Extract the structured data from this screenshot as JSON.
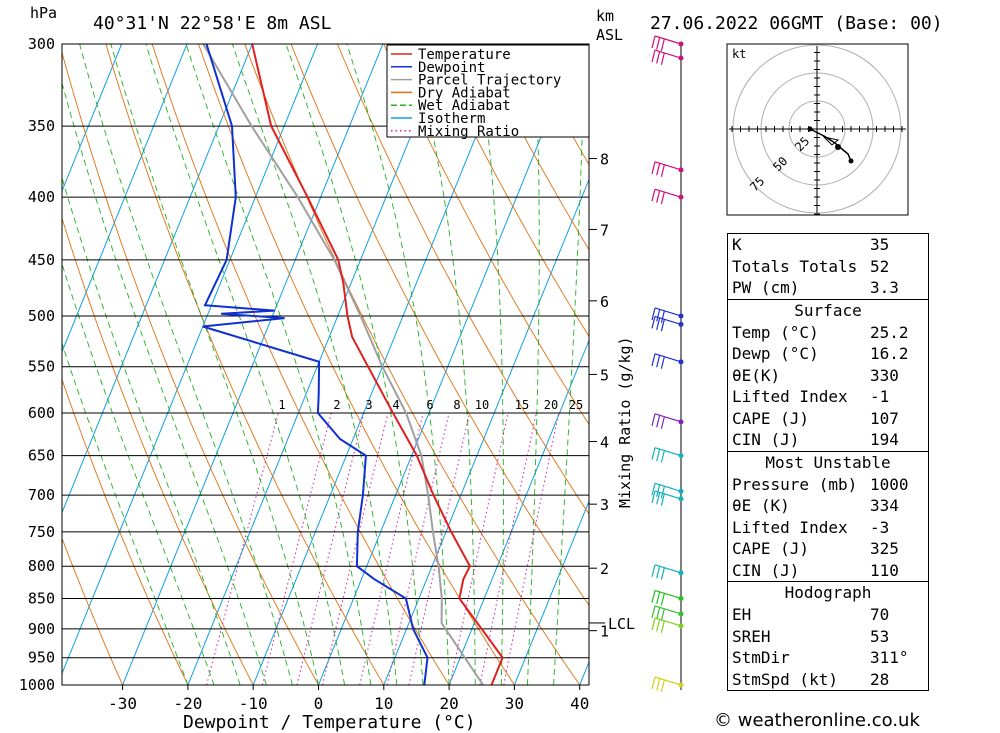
{
  "header": {
    "location": "40°31'N 22°58'E 8m ASL",
    "datetime": "27.06.2022 06GMT (Base: 00)",
    "pressure_unit": "hPa",
    "height_unit_top": "km",
    "height_unit_bottom": "ASL"
  },
  "legend": [
    {
      "label": "Temperature",
      "color": "#e02020",
      "style": "solid"
    },
    {
      "label": "Dewpoint",
      "color": "#1030d0",
      "style": "solid"
    },
    {
      "label": "Parcel Trajectory",
      "color": "#a0a0a0",
      "style": "solid"
    },
    {
      "label": "Dry Adiabat",
      "color": "#e07010",
      "style": "solid"
    },
    {
      "label": "Wet Adiabat",
      "color": "#20b020",
      "style": "dashed"
    },
    {
      "label": "Isotherm",
      "color": "#10a0e0",
      "style": "solid"
    },
    {
      "label": "Mixing Ratio",
      "color": "#d020a0",
      "style": "dotted"
    }
  ],
  "chart_data": {
    "type": "skew-t",
    "xlabel": "Dewpoint / Temperature (°C)",
    "ylabel_right": "Mixing Ratio (g/kg)",
    "pressure_levels": [
      300,
      350,
      400,
      450,
      500,
      550,
      600,
      650,
      700,
      750,
      800,
      850,
      900,
      950,
      1000
    ],
    "x_ticks": [
      -30,
      -20,
      -10,
      0,
      10,
      20,
      30,
      40
    ],
    "km_ticks": [
      {
        "label": "8",
        "p": 372
      },
      {
        "label": "7",
        "p": 425
      },
      {
        "label": "6",
        "p": 486
      },
      {
        "label": "5",
        "p": 558
      },
      {
        "label": "4",
        "p": 633
      },
      {
        "label": "3",
        "p": 712
      },
      {
        "label": "2",
        "p": 803
      },
      {
        "label": "1",
        "p": 903
      }
    ],
    "lcl": {
      "label": "LCL",
      "p": 890
    },
    "mixing_ratio_labels": [
      "1",
      "2",
      "3",
      "4",
      "6",
      "8",
      "10",
      "15",
      "20",
      "25"
    ],
    "temperature": [
      {
        "p": 1000,
        "t": 26.5
      },
      {
        "p": 950,
        "t": 26.5
      },
      {
        "p": 900,
        "t": 21.5
      },
      {
        "p": 850,
        "t": 16.2
      },
      {
        "p": 820,
        "t": 15.6
      },
      {
        "p": 800,
        "t": 15.8
      },
      {
        "p": 750,
        "t": 10.8
      },
      {
        "p": 700,
        "t": 5.8
      },
      {
        "p": 650,
        "t": 0.8
      },
      {
        "p": 600,
        "t": -5.5
      },
      {
        "p": 550,
        "t": -12.2
      },
      {
        "p": 520,
        "t": -16.5
      },
      {
        "p": 500,
        "t": -18.5
      },
      {
        "p": 470,
        "t": -21.2
      },
      {
        "p": 450,
        "t": -23.4
      },
      {
        "p": 400,
        "t": -32.0
      },
      {
        "p": 350,
        "t": -42.0
      },
      {
        "p": 300,
        "t": -50.0
      }
    ],
    "dewpoint": [
      {
        "p": 1000,
        "t": 16.2
      },
      {
        "p": 950,
        "t": 15.0
      },
      {
        "p": 900,
        "t": 11.0
      },
      {
        "p": 850,
        "t": 8.0
      },
      {
        "p": 820,
        "t": 2.0
      },
      {
        "p": 800,
        "t": -1.5
      },
      {
        "p": 750,
        "t": -3.5
      },
      {
        "p": 700,
        "t": -5.0
      },
      {
        "p": 650,
        "t": -7.0
      },
      {
        "p": 630,
        "t": -12.0
      },
      {
        "p": 600,
        "t": -17.0
      },
      {
        "p": 580,
        "t": -18.0
      },
      {
        "p": 545,
        "t": -20.0
      },
      {
        "p": 510,
        "t": -40.0
      },
      {
        "p": 502,
        "t": -28.0
      },
      {
        "p": 498,
        "t": -38.0
      },
      {
        "p": 495,
        "t": -30.0
      },
      {
        "p": 490,
        "t": -41.0
      },
      {
        "p": 450,
        "t": -40.5
      },
      {
        "p": 400,
        "t": -43.0
      },
      {
        "p": 350,
        "t": -48.0
      },
      {
        "p": 300,
        "t": -57.0
      }
    ],
    "parcel": [
      {
        "p": 1000,
        "t": 25.2
      },
      {
        "p": 890,
        "t": 15.0
      },
      {
        "p": 850,
        "t": 13.5
      },
      {
        "p": 800,
        "t": 11.0
      },
      {
        "p": 750,
        "t": 8.0
      },
      {
        "p": 700,
        "t": 5.0
      },
      {
        "p": 650,
        "t": 1.5
      },
      {
        "p": 600,
        "t": -3.5
      },
      {
        "p": 550,
        "t": -10.0
      },
      {
        "p": 500,
        "t": -16.5
      },
      {
        "p": 450,
        "t": -24.0
      },
      {
        "p": 400,
        "t": -33.5
      },
      {
        "p": 350,
        "t": -45.0
      },
      {
        "p": 300,
        "t": -57.5
      }
    ],
    "wind_barbs": [
      {
        "p": 300,
        "color": "#d0107f"
      },
      {
        "p": 308,
        "color": "#d0107f"
      },
      {
        "p": 380,
        "color": "#d0107f"
      },
      {
        "p": 400,
        "color": "#d0107f"
      },
      {
        "p": 500,
        "color": "#2030d0"
      },
      {
        "p": 508,
        "color": "#2030d0"
      },
      {
        "p": 545,
        "color": "#2030d0"
      },
      {
        "p": 610,
        "color": "#8020c0"
      },
      {
        "p": 650,
        "color": "#10b0c0"
      },
      {
        "p": 695,
        "color": "#10b0c0"
      },
      {
        "p": 705,
        "color": "#10b0c0"
      },
      {
        "p": 810,
        "color": "#10b0c0"
      },
      {
        "p": 850,
        "color": "#20c020"
      },
      {
        "p": 875,
        "color": "#30c030"
      },
      {
        "p": 895,
        "color": "#80d020"
      },
      {
        "p": 1000,
        "color": "#d0d020"
      }
    ]
  },
  "hodograph": {
    "unit": "kt",
    "ring_labels": [
      "25",
      "50",
      "75"
    ]
  },
  "indices": {
    "top": [
      {
        "label": "K",
        "value": "35"
      },
      {
        "label": "Totals Totals",
        "value": "52"
      },
      {
        "label": "PW (cm)",
        "value": "3.3"
      }
    ],
    "surface_title": "Surface",
    "surface": [
      {
        "label": "Temp (°C)",
        "value": "25.2"
      },
      {
        "label": "Dewp (°C)",
        "value": "16.2"
      },
      {
        "label": "θE(K)",
        "value": "330"
      },
      {
        "label": "Lifted Index",
        "value": "-1"
      },
      {
        "label": "CAPE (J)",
        "value": "107"
      },
      {
        "label": "CIN (J)",
        "value": "194"
      }
    ],
    "mu_title": "Most Unstable",
    "mu": [
      {
        "label": "Pressure (mb)",
        "value": "1000"
      },
      {
        "label": "θE (K)",
        "value": "334"
      },
      {
        "label": "Lifted Index",
        "value": "-3"
      },
      {
        "label": "CAPE (J)",
        "value": "325"
      },
      {
        "label": "CIN (J)",
        "value": "110"
      }
    ],
    "hodo_title": "Hodograph",
    "hodo": [
      {
        "label": "EH",
        "value": "70"
      },
      {
        "label": "SREH",
        "value": "53"
      },
      {
        "label": "StmDir",
        "value": "311°"
      },
      {
        "label": "StmSpd (kt)",
        "value": "28"
      }
    ]
  },
  "footer": {
    "copyright": "© weatheronline.co.uk"
  }
}
